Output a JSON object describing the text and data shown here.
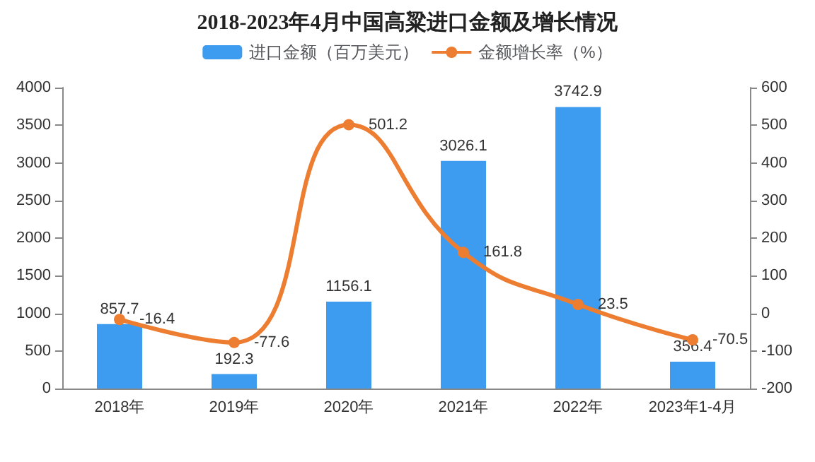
{
  "chart_data": {
    "type": "bar",
    "title": "2018-2023年4月中国高粱进口金额及增长情况",
    "categories": [
      "2018年",
      "2019年",
      "2020年",
      "2021年",
      "2022年",
      "2023年1-4月"
    ],
    "series": [
      {
        "name": "进口金额（百万美元）",
        "color": "#3d9cf0",
        "values": [
          857.7,
          192.3,
          1156.1,
          3026.1,
          3742.9,
          356.4
        ]
      },
      {
        "name": "金额增长率（%）",
        "type": "line",
        "axis": "y2",
        "color": "#ed7d31",
        "values": [
          -16.4,
          -77.6,
          501.2,
          161.8,
          23.5,
          -70.5
        ]
      }
    ],
    "ylim": [
      0,
      4000
    ],
    "yticks": [
      0,
      500,
      1000,
      1500,
      2000,
      2500,
      3000,
      3500,
      4000
    ],
    "y2lim": [
      -200,
      600
    ],
    "y2ticks": [
      -200,
      -100,
      0,
      100,
      200,
      300,
      400,
      500,
      600
    ],
    "data_labels": true,
    "legend": "top",
    "grid": false,
    "marker": "circle"
  }
}
